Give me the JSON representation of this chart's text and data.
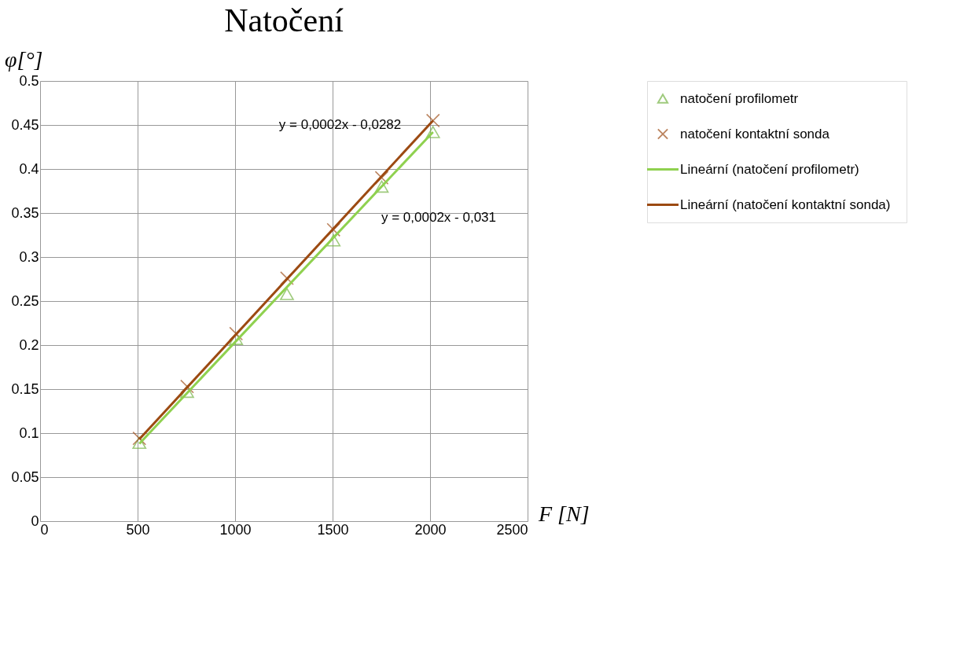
{
  "chart_data": {
    "type": "scatter",
    "title": "Natočení",
    "xlabel": "F [N]",
    "ylabel": "φ[°]",
    "xlim": [
      0,
      2500
    ],
    "xticks": [
      0,
      500,
      1000,
      1500,
      2000,
      2500
    ],
    "ylim": [
      0,
      0.5
    ],
    "yticks": [
      0,
      0.05,
      0.1,
      0.15,
      0.2,
      0.25,
      0.3,
      0.35,
      0.4,
      0.45,
      0.5
    ],
    "grid": true,
    "legend": "right",
    "series": [
      {
        "name": "natočení profilometr",
        "type": "scatter",
        "marker": "triangle",
        "color": "#77b547",
        "x": [
          509,
          754,
          1005,
          1266,
          1505,
          1752,
          2015
        ],
        "values": [
          0.089,
          0.147,
          0.207,
          0.258,
          0.319,
          0.38,
          0.442
        ]
      },
      {
        "name": "natočení kontaktní sonda",
        "type": "scatter",
        "marker": "cross",
        "color": "#a0521e",
        "x": [
          509,
          754,
          1005,
          1266,
          1505,
          1752,
          2015
        ],
        "values": [
          0.094,
          0.153,
          0.213,
          0.276,
          0.331,
          0.39,
          0.455
        ]
      },
      {
        "name": "Lineární (natočení profilometr)",
        "type": "line",
        "marker": "none",
        "color": "#8fd14f",
        "x": [
          509,
          2015
        ],
        "values": [
          0.088,
          0.442
        ]
      },
      {
        "name": "Lineární (natočení kontaktní sonda)",
        "type": "line",
        "marker": "none",
        "color": "#9c4a12",
        "x": [
          509,
          2015
        ],
        "values": [
          0.093,
          0.455
        ]
      }
    ],
    "annotations": [
      "y = 0,0002x - 0,0282",
      "y = 0,0002x - 0,031"
    ]
  }
}
